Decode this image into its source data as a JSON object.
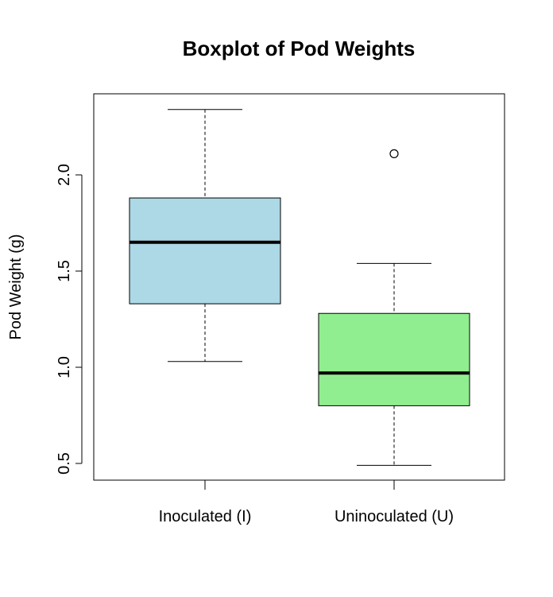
{
  "chart_data": {
    "type": "boxplot",
    "title": "Boxplot of Pod Weights",
    "xlabel": "",
    "ylabel": "Pod Weight (g)",
    "ylim": [
      0.42,
      2.43
    ],
    "y_ticks": [
      "0.5",
      "1.0",
      "1.5",
      "2.0"
    ],
    "y_tick_values": [
      0.5,
      1.0,
      1.5,
      2.0
    ],
    "grid": false,
    "groups": [
      {
        "label": "Inoculated (I)",
        "color": "#add8e6",
        "whisker_low": 1.03,
        "q1": 1.33,
        "median": 1.65,
        "q3": 1.88,
        "whisker_high": 2.34,
        "outliers": []
      },
      {
        "label": "Uninoculated (U)",
        "color": "#90ee90",
        "whisker_low": 0.49,
        "q1": 0.8,
        "median": 0.97,
        "q3": 1.28,
        "whisker_high": 1.54,
        "outliers": [
          2.11
        ]
      }
    ]
  }
}
